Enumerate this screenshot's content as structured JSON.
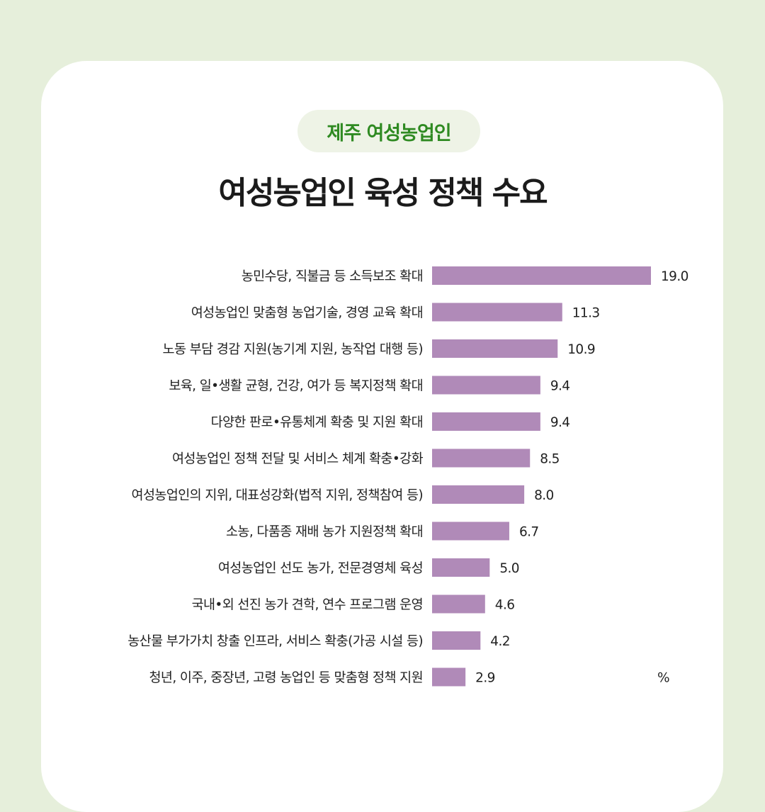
{
  "tag": "제주 여성농업인",
  "title": "여성농업인 육성 정책 수요",
  "colors": {
    "bar": "#b08ab8",
    "tag_text": "#2f8a22"
  },
  "chart_data": {
    "type": "bar",
    "orientation": "horizontal",
    "unit": "%",
    "categories": [
      "농민수당, 직불금 등 소득보조 확대",
      "여성농업인 맞춤형 농업기술, 경영 교육 확대",
      "노동 부담 경감 지원(농기계 지원, 농작업 대행 등)",
      "보육, 일•생활 균형, 건강, 여가 등 복지정책 확대",
      "다양한 판로•유통체계 확충 및 지원 확대",
      "여성농업인 정책 전달 및 서비스 체계 확충•강화",
      "여성농업인의 지위, 대표성강화(법적 지위, 정책참여 등)",
      "소농, 다품종 재배 농가 지원정책 확대",
      "여성농업인 선도 농가, 전문경영체 육성",
      "국내•외 선진 농가 견학, 연수 프로그램 운영",
      "농산물 부가가치 창출 인프라, 서비스 확충(가공 시설 등)",
      "청년, 이주, 중장년, 고령 농업인 등 맞춤형 정책 지원"
    ],
    "values": [
      19.0,
      11.3,
      10.9,
      9.4,
      9.4,
      8.5,
      8.0,
      6.7,
      5.0,
      4.6,
      4.2,
      2.9
    ],
    "value_labels": [
      "19.0",
      "11.3",
      "10.9",
      "9.4",
      "9.4",
      "8.5",
      "8.0",
      "6.7",
      "5.0",
      "4.6",
      "4.2",
      "2.9"
    ],
    "xlim": [
      0,
      19.0
    ]
  }
}
